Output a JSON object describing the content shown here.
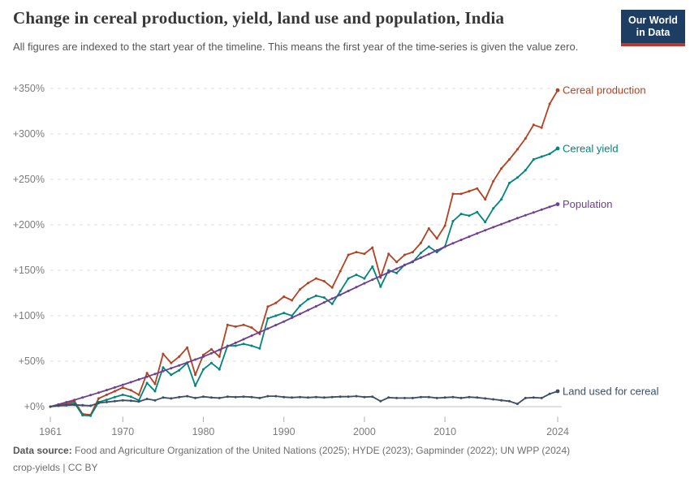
{
  "header": {
    "title": "Change in cereal production, yield, land use and population, India",
    "subtitle": "All figures are indexed to the start year of the timeline. This means the first year of the time-series is given the value zero.",
    "logo": {
      "line1": "Our World",
      "line2": "in Data",
      "bg_color": "#1d3d63",
      "bar_color": "#c0362c"
    }
  },
  "footer": {
    "data_source_label": "Data source:",
    "data_source_text": " Food and Agriculture Organization of the United Nations (2025); HYDE (2023); Gapminder (2022); UN WPP (2024)",
    "line2": "crop-yields | CC BY"
  },
  "chart_data": {
    "type": "line",
    "title": "Change in cereal production, yield, land use and population, India",
    "xlabel": "",
    "ylabel": "",
    "grid": "dashed-horizontal",
    "legend_position": "right-end-labels",
    "x_start": 1961,
    "x_end": 2024,
    "x_ticks": [
      1961,
      1970,
      1980,
      1990,
      2000,
      2010,
      2024
    ],
    "ylim": [
      -15,
      360
    ],
    "y_ticks": [
      {
        "label": "+0%",
        "value": 0
      },
      {
        "label": "+50%",
        "value": 50
      },
      {
        "label": "+100%",
        "value": 100
      },
      {
        "label": "+150%",
        "value": 150
      },
      {
        "label": "+200%",
        "value": 200
      },
      {
        "label": "+250%",
        "value": 250
      },
      {
        "label": "+300%",
        "value": 300
      },
      {
        "label": "+350%",
        "value": 350
      }
    ],
    "unit": "%",
    "colors": {
      "grid": "#dedede",
      "zero_line": "#c3c3c3",
      "tick": "#adadad",
      "axis_text": "#7c7c7c"
    },
    "series": [
      {
        "name": "Cereal production",
        "color": "#b34122",
        "values": [
          0,
          2,
          3,
          6,
          -8,
          -9,
          9,
          13,
          17,
          21,
          18,
          13,
          37,
          25,
          58,
          48,
          55,
          65,
          35,
          57,
          63,
          55,
          90,
          88,
          90,
          87,
          80,
          110,
          114,
          121,
          117,
          129,
          136,
          141,
          138,
          131,
          149,
          167,
          170,
          168,
          175,
          142,
          168,
          159,
          167,
          170,
          180,
          196,
          185,
          199,
          234,
          234,
          237,
          240,
          228,
          248,
          262,
          272,
          283,
          295,
          310,
          307,
          333,
          348
        ]
      },
      {
        "name": "Cereal yield",
        "color": "#00847e",
        "values": [
          0,
          1,
          1.5,
          4,
          -9.5,
          -10,
          5,
          7.5,
          10.5,
          13,
          11,
          7,
          26,
          17,
          43,
          35,
          40,
          48,
          23,
          41,
          48,
          41,
          67,
          67,
          69,
          67,
          64,
          97,
          100,
          103,
          100,
          111,
          118,
          122,
          120,
          113,
          127,
          141,
          145,
          141,
          154,
          132,
          150,
          147,
          156,
          159,
          169,
          176,
          170,
          176,
          204,
          212,
          210,
          214,
          203,
          218,
          228,
          246,
          252,
          260,
          272,
          275,
          278,
          284
        ]
      },
      {
        "name": "Population",
        "color": "#6d3e91",
        "values": [
          0,
          2.4,
          4.9,
          7.4,
          10,
          12.7,
          15.4,
          18.2,
          21.1,
          24,
          26.9,
          29.9,
          32.9,
          36,
          39.1,
          42.2,
          45.4,
          48.6,
          51.8,
          55,
          58.7,
          62.5,
          66.3,
          70.2,
          74.1,
          78,
          81.9,
          85.8,
          89.7,
          93.6,
          97.8,
          102,
          106.2,
          110.4,
          114.6,
          118.8,
          123,
          127.2,
          131.4,
          135.6,
          139.6,
          143.6,
          147.7,
          151.7,
          155.7,
          159.7,
          163.8,
          167.8,
          171.9,
          175.9,
          179.7,
          183.4,
          187,
          190.5,
          194,
          197.4,
          200.7,
          204,
          207.3,
          210.5,
          213.6,
          216.7,
          219.7,
          222.7
        ]
      },
      {
        "name": "Land used for cereal",
        "color": "#3c4e66",
        "values": [
          0,
          1,
          1.5,
          2,
          1.5,
          1,
          4,
          5,
          6,
          7,
          6.5,
          5.5,
          8.5,
          7,
          10,
          9,
          10.5,
          11.5,
          9.5,
          11,
          10,
          9.5,
          11,
          10.5,
          11,
          10.5,
          9.5,
          11.5,
          11.5,
          10.5,
          10,
          10.5,
          10,
          10.5,
          10,
          10.5,
          11,
          11,
          11.5,
          10.5,
          11,
          6,
          10,
          9.5,
          9.5,
          9.5,
          10.5,
          10.5,
          9.5,
          10,
          10.5,
          9.5,
          10.5,
          10,
          9,
          8,
          7,
          6,
          3,
          9.5,
          10,
          9.5,
          14,
          17
        ]
      }
    ]
  }
}
